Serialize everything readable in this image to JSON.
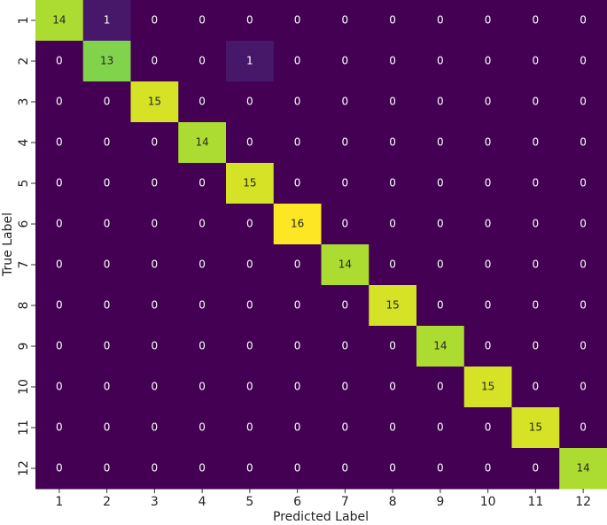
{
  "chart_data": {
    "type": "heatmap",
    "colormap": "viridis",
    "x_label": "Predicted Label",
    "y_label": "True Label",
    "x_categories": [
      "1",
      "2",
      "3",
      "4",
      "5",
      "6",
      "7",
      "8",
      "9",
      "10",
      "11",
      "12"
    ],
    "y_categories": [
      "1",
      "2",
      "3",
      "4",
      "5",
      "6",
      "7",
      "8",
      "9",
      "10",
      "11",
      "12"
    ],
    "values": [
      [
        14,
        1,
        0,
        0,
        0,
        0,
        0,
        0,
        0,
        0,
        0,
        0
      ],
      [
        0,
        13,
        0,
        0,
        1,
        0,
        0,
        0,
        0,
        0,
        0,
        0
      ],
      [
        0,
        0,
        15,
        0,
        0,
        0,
        0,
        0,
        0,
        0,
        0,
        0
      ],
      [
        0,
        0,
        0,
        14,
        0,
        0,
        0,
        0,
        0,
        0,
        0,
        0
      ],
      [
        0,
        0,
        0,
        0,
        15,
        0,
        0,
        0,
        0,
        0,
        0,
        0
      ],
      [
        0,
        0,
        0,
        0,
        0,
        16,
        0,
        0,
        0,
        0,
        0,
        0
      ],
      [
        0,
        0,
        0,
        0,
        0,
        0,
        14,
        0,
        0,
        0,
        0,
        0
      ],
      [
        0,
        0,
        0,
        0,
        0,
        0,
        0,
        15,
        0,
        0,
        0,
        0
      ],
      [
        0,
        0,
        0,
        0,
        0,
        0,
        0,
        0,
        14,
        0,
        0,
        0
      ],
      [
        0,
        0,
        0,
        0,
        0,
        0,
        0,
        0,
        0,
        15,
        0,
        0
      ],
      [
        0,
        0,
        0,
        0,
        0,
        0,
        0,
        0,
        0,
        0,
        15,
        0
      ],
      [
        0,
        0,
        0,
        0,
        0,
        0,
        0,
        0,
        0,
        0,
        0,
        14
      ]
    ]
  }
}
